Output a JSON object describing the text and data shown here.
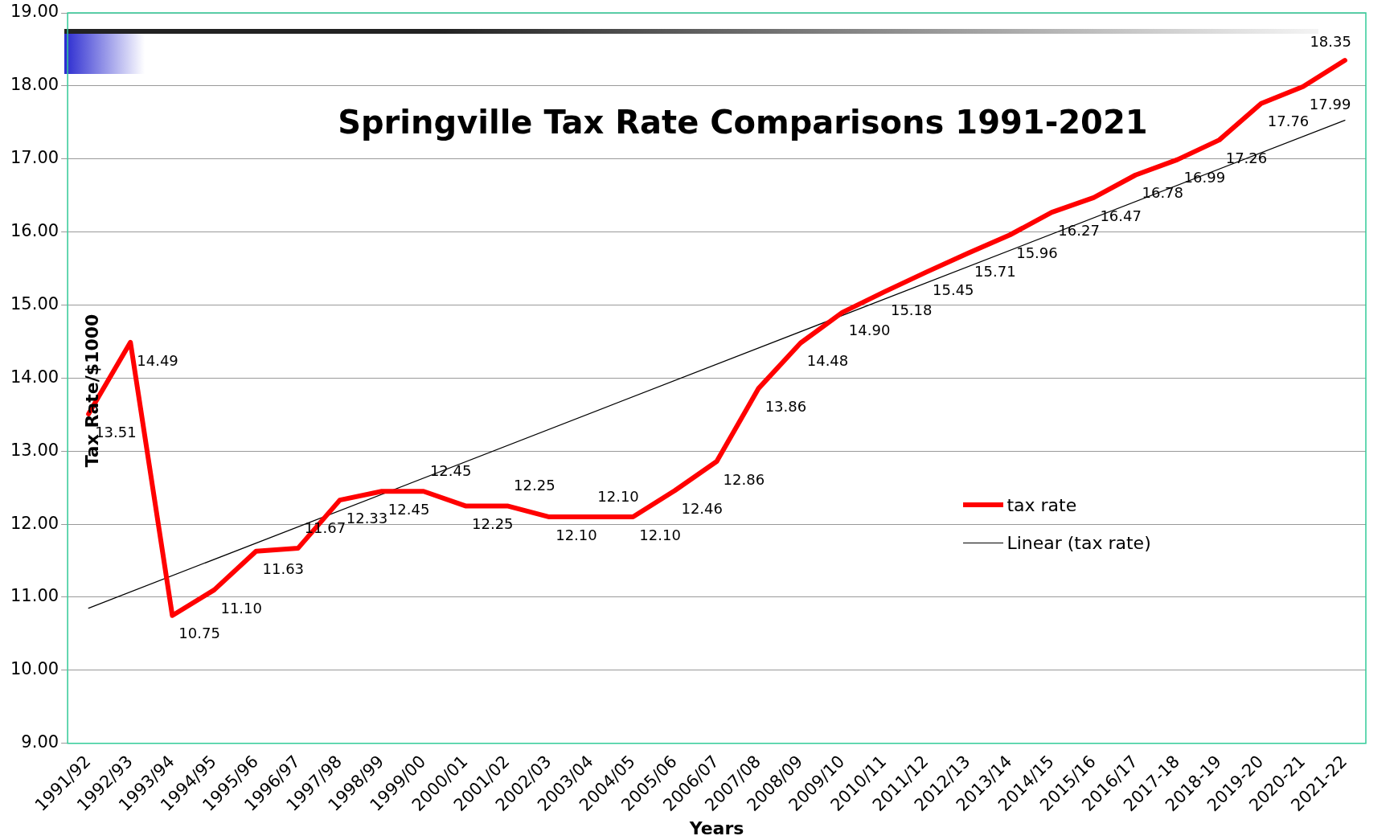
{
  "chart_data": {
    "type": "line",
    "title": "Springville Tax Rate Comparisons 1991-2021",
    "xlabel": "Years",
    "ylabel": "Tax Rate/$1000",
    "categories": [
      "1991/92",
      "1992/93",
      "1993/94",
      "1994/95",
      "1995/96",
      "1996/97",
      "1997/98",
      "1998/99",
      "1999/00",
      "2000/01",
      "2001/02",
      "2002/03",
      "2003/04",
      "2004/05",
      "2005/06",
      "2006/07",
      "2007/08",
      "2008/09",
      "2009/10",
      "2010/11",
      "2011/12",
      "2012/13",
      "2013/14",
      "2014/15",
      "2015/16",
      "2016/17",
      "2017-18",
      "2018-19",
      "2019-20",
      "2020-21",
      "2021-22"
    ],
    "series": [
      {
        "name": "tax rate",
        "color": "#ff0000",
        "values": [
          13.51,
          14.49,
          10.75,
          11.1,
          11.63,
          11.67,
          12.33,
          12.45,
          12.45,
          12.25,
          12.25,
          12.1,
          12.1,
          12.1,
          12.46,
          12.86,
          13.86,
          14.48,
          14.9,
          15.18,
          15.45,
          15.71,
          15.96,
          16.27,
          16.47,
          16.78,
          16.99,
          17.26,
          17.76,
          17.99,
          18.35
        ],
        "value_labels": [
          "13.51",
          "14.49",
          "10.75",
          "11.10",
          "11.63",
          "11.67",
          "12.33",
          "12.45",
          "12.45",
          "12.25",
          "12.25",
          "12.10",
          "12.10",
          "12.10",
          "12.46",
          "12.86",
          "13.86",
          "14.48",
          "14.90",
          "15.18",
          "15.45",
          "15.71",
          "15.96",
          "16.27",
          "16.47",
          "16.78",
          "16.99",
          "17.26",
          "17.76",
          "17.99",
          "18.35"
        ]
      },
      {
        "name": "Linear (tax rate)",
        "type": "line",
        "color": "#000000",
        "x": [
          "1991/92",
          "2021-22"
        ],
        "values": [
          10.85,
          17.53
        ]
      }
    ],
    "ylim": [
      9,
      19
    ],
    "yticks": [
      {
        "value": 9,
        "label": "9.00"
      },
      {
        "value": 10,
        "label": "10.00"
      },
      {
        "value": 11,
        "label": "11.00"
      },
      {
        "value": 12,
        "label": "12.00"
      },
      {
        "value": 13,
        "label": "13.00"
      },
      {
        "value": 14,
        "label": "14.00"
      },
      {
        "value": 15,
        "label": "15.00"
      },
      {
        "value": 16,
        "label": "16.00"
      },
      {
        "value": 17,
        "label": "17.00"
      },
      {
        "value": 18,
        "label": "18.00"
      },
      {
        "value": 19,
        "label": "19.00"
      }
    ],
    "grid": "y",
    "legend": "right",
    "marker": "none",
    "line_style": "solid"
  }
}
